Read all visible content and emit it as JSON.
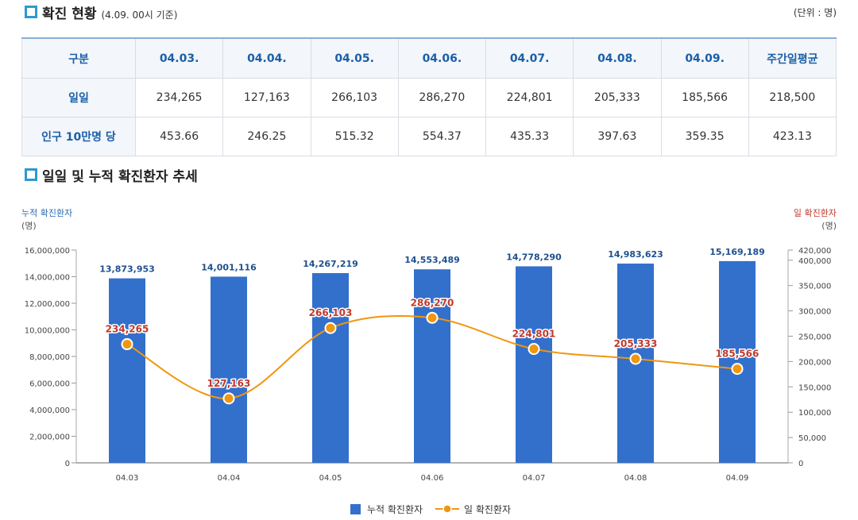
{
  "header": {
    "title": "확진 현황",
    "subtitle": "(4.09. 00시 기준)",
    "unit": "(단위 : 명)"
  },
  "table": {
    "columns": [
      "구분",
      "04.03.",
      "04.04.",
      "04.05.",
      "04.06.",
      "04.07.",
      "04.08.",
      "04.09.",
      "주간일평균"
    ],
    "rows": [
      [
        "일일",
        "234,265",
        "127,163",
        "266,103",
        "286,270",
        "224,801",
        "205,333",
        "185,566",
        "218,500"
      ],
      [
        "인구 10만명 당",
        "453.66",
        "246.25",
        "515.32",
        "554.37",
        "435.33",
        "397.63",
        "359.35",
        "423.13"
      ]
    ]
  },
  "chart_section": {
    "title": "일일 및 누적 확진환자 추세"
  },
  "colors": {
    "bar": "#3270cc",
    "line": "#f0960f",
    "accent": "#2b9ad1",
    "left_axis_label": "#2b6cb0",
    "right_axis_label": "#c0392b",
    "line_label": "#c0392b"
  },
  "chart_data": {
    "type": "bar+line",
    "categories": [
      "04.03",
      "04.04",
      "04.05",
      "04.06",
      "04.07",
      "04.08",
      "04.09"
    ],
    "series": [
      {
        "name": "누적 확진환자",
        "type": "bar",
        "axis": "left",
        "values": [
          13873953,
          14001116,
          14267219,
          14553489,
          14778290,
          14983623,
          15169189
        ],
        "labels": [
          "13,873,953",
          "14,001,116",
          "14,267,219",
          "14,553,489",
          "14,778,290",
          "14,983,623",
          "15,169,189"
        ]
      },
      {
        "name": "일 확진환자",
        "type": "line",
        "axis": "right",
        "values": [
          234265,
          127163,
          266103,
          286270,
          224801,
          205333,
          185566
        ],
        "labels": [
          "234,265",
          "127,163",
          "266,103",
          "286,270",
          "224,801",
          "205,333",
          "185,566"
        ]
      }
    ],
    "left_axis": {
      "label": "누적 확진환자",
      "unit": "(명)",
      "range": [
        0,
        16000000
      ],
      "ticks": [
        "0",
        "2,000,000",
        "4,000,000",
        "6,000,000",
        "8,000,000",
        "10,000,000",
        "12,000,000",
        "14,000,000",
        "16,000,000"
      ]
    },
    "right_axis": {
      "label": "일 확진환자",
      "unit": "(명)",
      "range": [
        0,
        420000
      ],
      "ticks": [
        "0",
        "50,000",
        "100,000",
        "150,000",
        "200,000",
        "250,000",
        "300,000",
        "350,000",
        "400,000",
        "420,000"
      ]
    },
    "legend": [
      "누적 확진환자",
      "일 확진환자"
    ]
  }
}
